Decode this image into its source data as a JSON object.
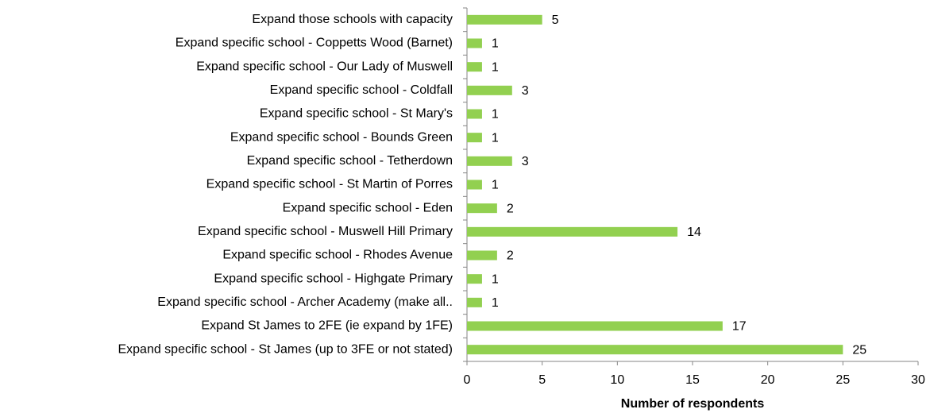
{
  "chart_data": {
    "type": "bar",
    "orientation": "horizontal",
    "categories": [
      "Expand those schools with capacity",
      "Expand specific school - Coppetts Wood (Barnet)",
      "Expand specific school - Our Lady of Muswell",
      "Expand specific school - Coldfall",
      "Expand specific school - St Mary's",
      "Expand specific school - Bounds Green",
      "Expand specific school - Tetherdown",
      "Expand specific school - St Martin of Porres",
      "Expand specific school - Eden",
      "Expand specific school - Muswell Hill Primary",
      "Expand specific school - Rhodes Avenue",
      "Expand specific school - Highgate Primary",
      "Expand specific school - Archer Academy (make all..",
      "Expand St James to 2FE (ie expand by 1FE)",
      "Expand specific school - St James (up to 3FE or not stated)"
    ],
    "values": [
      5,
      1,
      1,
      3,
      1,
      1,
      3,
      1,
      2,
      14,
      2,
      1,
      1,
      17,
      25
    ],
    "color": "#92d050",
    "xlim": [
      0,
      30
    ],
    "xticks": [
      0,
      5,
      10,
      15,
      20,
      25,
      30
    ],
    "x_label": "Number of respondents",
    "grid": false
  }
}
